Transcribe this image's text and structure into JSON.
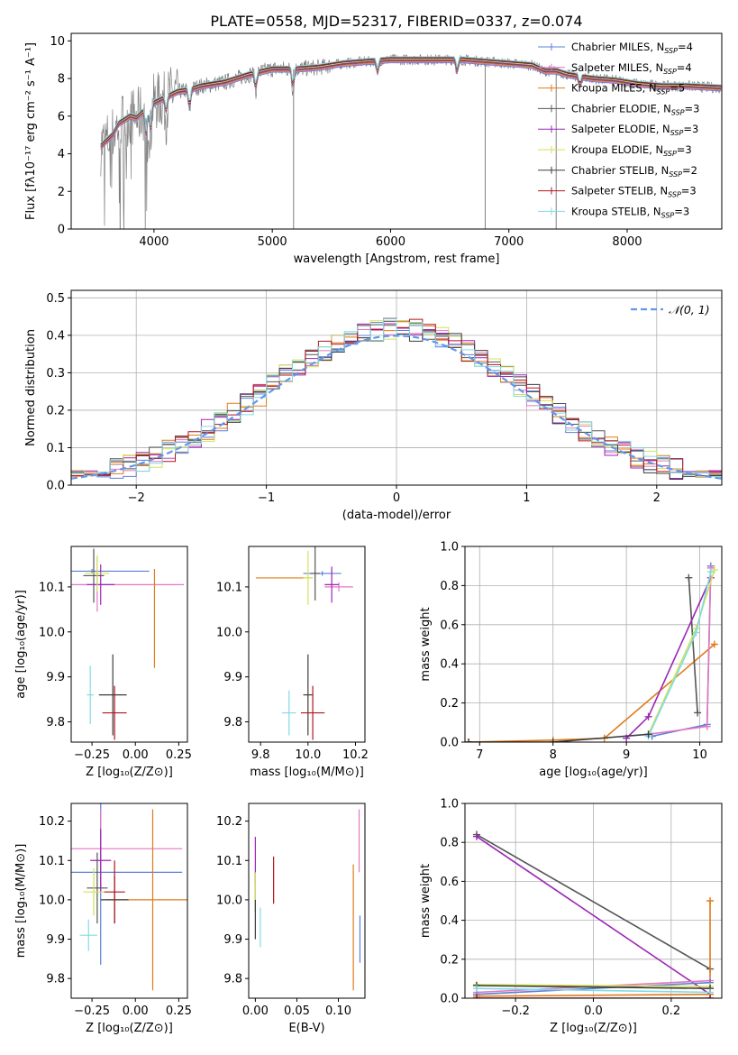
{
  "figure_title": "PLATE=0558, MJD=52317, FIBERID=0337, z=0.074",
  "colors": {
    "chabrier_miles": "#5b7fd6",
    "salpeter_miles": "#e377c2",
    "kroupa_miles": "#e07b1a",
    "chabrier_elodie": "#555555",
    "salpeter_elodie": "#9b26b6",
    "kroupa_elodie": "#d4e157",
    "chabrier_stelib": "#3d3d3d",
    "salpeter_stelib": "#b3141f",
    "kroupa_stelib": "#80dbe5",
    "data": "#808080",
    "normal": "#6495ed"
  },
  "legend_models": [
    {
      "key": "chabrier_miles",
      "label": "Chabrier MILES, N",
      "sub": "SSP",
      "eq": "=4"
    },
    {
      "key": "salpeter_miles",
      "label": "Salpeter MILES, N",
      "sub": "SSP",
      "eq": "=4"
    },
    {
      "key": "kroupa_miles",
      "label": "Kroupa MILES, N",
      "sub": "SSP",
      "eq": "=5"
    },
    {
      "key": "chabrier_elodie",
      "label": "Chabrier ELODIE, N",
      "sub": "SSP",
      "eq": "=3"
    },
    {
      "key": "salpeter_elodie",
      "label": "Salpeter ELODIE, N",
      "sub": "SSP",
      "eq": "=3"
    },
    {
      "key": "kroupa_elodie",
      "label": "Kroupa ELODIE, N",
      "sub": "SSP",
      "eq": "=3"
    },
    {
      "key": "chabrier_stelib",
      "label": "Chabrier STELIB, N",
      "sub": "SSP",
      "eq": "=2"
    },
    {
      "key": "salpeter_stelib",
      "label": "Salpeter STELIB, N",
      "sub": "SSP",
      "eq": "=3"
    },
    {
      "key": "kroupa_stelib",
      "label": "Kroupa STELIB, N",
      "sub": "SSP",
      "eq": "=3"
    }
  ],
  "chart_data": [
    {
      "id": "spectrum",
      "type": "line",
      "xlabel": "wavelength [Angstrom, rest frame]",
      "ylabel": "Flux [fλ10⁻¹⁷ erg cm⁻² s⁻¹ A⁻¹]",
      "xlim": [
        3300,
        8800
      ],
      "ylim": [
        0,
        10.4
      ],
      "xticks": [
        4000,
        5000,
        6000,
        7000,
        8000
      ],
      "yticks": [
        0,
        2,
        4,
        6,
        8,
        10
      ],
      "grid": false,
      "legend_position": "upper right",
      "continuum": {
        "x": [
          3550,
          3650,
          3700,
          3800,
          3850,
          3900,
          3950,
          4000,
          4100,
          4200,
          4300,
          4400,
          4500,
          4600,
          4800,
          5000,
          5200,
          5400,
          5600,
          5800,
          6000,
          6200,
          6400,
          6600,
          6800,
          7000,
          7200,
          7300,
          7400,
          7500,
          7700,
          7900,
          8100,
          8300,
          8500,
          8800
        ],
        "y": [
          4.4,
          5.0,
          5.6,
          6.0,
          5.9,
          6.2,
          6.4,
          6.7,
          7.0,
          7.3,
          7.4,
          7.6,
          7.7,
          7.8,
          8.2,
          8.5,
          8.5,
          8.6,
          8.8,
          8.9,
          9.0,
          9.0,
          9.0,
          9.0,
          8.9,
          8.8,
          8.7,
          8.4,
          8.4,
          8.2,
          8.0,
          7.9,
          7.7,
          7.6,
          7.6,
          7.5
        ]
      }
    },
    {
      "id": "residuals",
      "type": "histogram",
      "xlabel": "(data-model)/error",
      "ylabel": "Normed distribution",
      "xlim": [
        -2.5,
        2.5
      ],
      "ylim": [
        0,
        0.52
      ],
      "xticks": [
        -2,
        -1,
        0,
        1,
        2
      ],
      "yticks": [
        0.0,
        0.1,
        0.2,
        0.3,
        0.4,
        0.5
      ],
      "grid": true,
      "legend_position": "upper right",
      "legend_label": "𝒩(0, 1)",
      "bin_width": 0.1,
      "bin_start": -2.5
    },
    {
      "id": "age_vs_z",
      "type": "scatter",
      "xlabel": "Z [log₁₀(Z/Z⊙)]",
      "ylabel": "age  [log₁₀(age/yr)]",
      "xlim": [
        -0.37,
        0.3
      ],
      "ylim": [
        9.755,
        10.19
      ],
      "xticks": [
        -0.25,
        0.0,
        0.25
      ],
      "yticks": [
        9.8,
        9.9,
        10.0,
        10.1
      ],
      "points": [
        {
          "key": "chabrier_miles",
          "x": -0.25,
          "y": 10.135,
          "xerr": 0.33,
          "yerr": 0.005
        },
        {
          "key": "salpeter_miles",
          "x": -0.22,
          "y": 10.105,
          "xerr": 0.5,
          "yerr": 0.06
        },
        {
          "key": "kroupa_miles",
          "x": 0.11,
          "y": 10.03,
          "xerr": 0.001,
          "yerr": 0.11
        },
        {
          "key": "chabrier_elodie",
          "x": -0.24,
          "y": 10.125,
          "xerr": 0.06,
          "yerr": 0.06
        },
        {
          "key": "salpeter_elodie",
          "x": -0.2,
          "y": 10.105,
          "xerr": 0.08,
          "yerr": 0.045
        },
        {
          "key": "kroupa_elodie",
          "x": -0.22,
          "y": 10.13,
          "xerr": 0.07,
          "yerr": 0.04
        },
        {
          "key": "chabrier_stelib",
          "x": -0.13,
          "y": 9.86,
          "xerr": 0.08,
          "yerr": 0.09
        },
        {
          "key": "salpeter_stelib",
          "x": -0.12,
          "y": 9.82,
          "xerr": 0.07,
          "yerr": 0.06
        },
        {
          "key": "kroupa_stelib",
          "x": -0.26,
          "y": 9.86,
          "xerr": 0.02,
          "yerr": 0.065
        }
      ]
    },
    {
      "id": "age_vs_mass",
      "type": "scatter",
      "xlabel": "mass [log₁₀(M/M⊙)]",
      "ylabel": "",
      "xlim": [
        9.75,
        10.24
      ],
      "ylim": [
        9.755,
        10.19
      ],
      "xticks": [
        9.8,
        10.0,
        10.2
      ],
      "yticks": [
        9.8,
        9.9,
        10.0,
        10.1
      ],
      "points": [
        {
          "key": "chabrier_miles",
          "x": 10.06,
          "y": 10.13,
          "xerr": 0.08,
          "yerr": 0.005
        },
        {
          "key": "salpeter_miles",
          "x": 10.13,
          "y": 10.1,
          "xerr": 0.06,
          "yerr": 0.01
        },
        {
          "key": "kroupa_miles",
          "x": 9.9,
          "y": 10.12,
          "xerr": 0.12,
          "yerr": 0.001
        },
        {
          "key": "chabrier_elodie",
          "x": 10.03,
          "y": 10.13,
          "xerr": 0.02,
          "yerr": 0.06
        },
        {
          "key": "salpeter_elodie",
          "x": 10.1,
          "y": 10.105,
          "xerr": 0.03,
          "yerr": 0.04
        },
        {
          "key": "kroupa_elodie",
          "x": 10.0,
          "y": 10.12,
          "xerr": 0.02,
          "yerr": 0.06
        },
        {
          "key": "chabrier_stelib",
          "x": 10.0,
          "y": 9.86,
          "xerr": 0.02,
          "yerr": 0.09
        },
        {
          "key": "salpeter_stelib",
          "x": 10.02,
          "y": 9.82,
          "xerr": 0.05,
          "yerr": 0.06
        },
        {
          "key": "kroupa_stelib",
          "x": 9.92,
          "y": 9.82,
          "xerr": 0.03,
          "yerr": 0.05
        }
      ]
    },
    {
      "id": "weight_vs_age",
      "type": "line",
      "xlabel": "age  [log₁₀(age/yr)]",
      "ylabel": "mass weight",
      "xlim": [
        6.8,
        10.3
      ],
      "ylim": [
        0,
        1.0
      ],
      "xticks": [
        7,
        8,
        9,
        10
      ],
      "yticks": [
        0.0,
        0.2,
        0.4,
        0.6,
        0.8,
        1.0
      ],
      "grid": true,
      "series": [
        {
          "key": "kroupa_miles",
          "x": [
            6.85,
            8.0,
            8.7,
            10.2
          ],
          "y": [
            0.0,
            0.01,
            0.02,
            0.5
          ]
        },
        {
          "key": "chabrier_elodie",
          "x": [
            9.85,
            9.97
          ],
          "y": [
            0.84,
            0.15
          ]
        },
        {
          "key": "salpeter_elodie",
          "x": [
            9.0,
            9.3,
            10.15
          ],
          "y": [
            0.02,
            0.13,
            0.84
          ]
        },
        {
          "key": "chabrier_miles",
          "x": [
            9.35,
            10.1,
            10.15
          ],
          "y": [
            0.03,
            0.09,
            0.9
          ]
        },
        {
          "key": "salpeter_miles",
          "x": [
            9.3,
            10.1,
            10.15
          ],
          "y": [
            0.04,
            0.08,
            0.89
          ]
        },
        {
          "key": "kroupa_elodie",
          "x": [
            9.3,
            9.95,
            10.2
          ],
          "y": [
            0.04,
            0.58,
            0.88
          ]
        },
        {
          "key": "kroupa_stelib",
          "x": [
            9.3,
            9.95,
            10.15
          ],
          "y": [
            0.03,
            0.56,
            0.87
          ]
        },
        {
          "key": "chabrier_stelib",
          "x": [
            6.85,
            8.0,
            9.3
          ],
          "y": [
            0.0,
            0.0,
            0.04
          ]
        }
      ]
    },
    {
      "id": "mass_vs_z",
      "type": "scatter",
      "xlabel": "Z [log₁₀(Z/Z⊙)]",
      "ylabel": "mass [log₁₀(M/M⊙)]",
      "xlim": [
        -0.37,
        0.3
      ],
      "ylim": [
        9.75,
        10.245
      ],
      "xticks": [
        -0.25,
        0.0,
        0.25
      ],
      "yticks": [
        9.8,
        9.9,
        10.0,
        10.1,
        10.2
      ],
      "points": [
        {
          "key": "chabrier_miles",
          "x": -0.2,
          "y": 10.07,
          "xerr": 0.47,
          "yerr": 0.235
        },
        {
          "key": "salpeter_miles",
          "x": -0.2,
          "y": 10.13,
          "xerr": 0.47,
          "yerr": 0.1
        },
        {
          "key": "kroupa_miles",
          "x": 0.1,
          "y": 10.0,
          "xerr": 0.27,
          "yerr": 0.23
        },
        {
          "key": "chabrier_elodie",
          "x": -0.22,
          "y": 10.03,
          "xerr": 0.06,
          "yerr": 0.09
        },
        {
          "key": "salpeter_elodie",
          "x": -0.2,
          "y": 10.1,
          "xerr": 0.06,
          "yerr": 0.08
        },
        {
          "key": "kroupa_elodie",
          "x": -0.24,
          "y": 10.02,
          "xerr": 0.06,
          "yerr": 0.06
        },
        {
          "key": "chabrier_stelib",
          "x": -0.12,
          "y": 10.0,
          "xerr": 0.08,
          "yerr": 0.06
        },
        {
          "key": "salpeter_stelib",
          "x": -0.12,
          "y": 10.02,
          "xerr": 0.06,
          "yerr": 0.08
        },
        {
          "key": "kroupa_stelib",
          "x": -0.27,
          "y": 9.91,
          "xerr": 0.05,
          "yerr": 0.04
        }
      ]
    },
    {
      "id": "mass_vs_ebv",
      "type": "scatter",
      "xlabel": "E(B-V)",
      "ylabel": "",
      "xlim": [
        -0.008,
        0.132
      ],
      "ylim": [
        9.75,
        10.245
      ],
      "xticks": [
        0.0,
        0.05,
        0.1
      ],
      "yticks": [
        9.8,
        9.9,
        10.0,
        10.1,
        10.2
      ],
      "points": [
        {
          "key": "chabrier_miles",
          "x": 0.126,
          "y": 9.9,
          "xerr": 0.0,
          "yerr": 0.06
        },
        {
          "key": "salpeter_miles",
          "x": 0.125,
          "y": 10.15,
          "xerr": 0.0,
          "yerr": 0.08
        },
        {
          "key": "kroupa_miles",
          "x": 0.118,
          "y": 9.93,
          "xerr": 0.0,
          "yerr": 0.16
        },
        {
          "key": "chabrier_elodie",
          "x": 0.0,
          "y": 10.02,
          "xerr": 0.0,
          "yerr": 0.05
        },
        {
          "key": "salpeter_elodie",
          "x": 0.0,
          "y": 10.1,
          "xerr": 0.0,
          "yerr": 0.06
        },
        {
          "key": "kroupa_elodie",
          "x": 0.0,
          "y": 10.02,
          "xerr": 0.0,
          "yerr": 0.05
        },
        {
          "key": "chabrier_stelib",
          "x": 0.0,
          "y": 9.95,
          "xerr": 0.0,
          "yerr": 0.05
        },
        {
          "key": "salpeter_stelib",
          "x": 0.022,
          "y": 10.05,
          "xerr": 0.0,
          "yerr": 0.06
        },
        {
          "key": "kroupa_stelib",
          "x": 0.006,
          "y": 9.93,
          "xerr": 0.0,
          "yerr": 0.05
        }
      ]
    },
    {
      "id": "weight_vs_z",
      "type": "line",
      "xlabel": "Z [log₁₀(Z/Z⊙)]",
      "ylabel": "mass weight",
      "xlim": [
        -0.33,
        0.33
      ],
      "ylim": [
        0,
        1.0
      ],
      "xticks": [
        -0.2,
        0.0,
        0.2
      ],
      "yticks": [
        0.0,
        0.2,
        0.4,
        0.6,
        0.8,
        1.0
      ],
      "grid": true,
      "series": [
        {
          "key": "chabrier_elodie",
          "x": [
            -0.3,
            0.3
          ],
          "y": [
            0.84,
            0.15
          ]
        },
        {
          "key": "salpeter_elodie",
          "x": [
            -0.3,
            0.3
          ],
          "y": [
            0.83,
            0.02
          ]
        },
        {
          "key": "kroupa_miles",
          "x": [
            -0.3,
            0.3,
            0.3
          ],
          "y": [
            0.01,
            0.02,
            0.5
          ]
        },
        {
          "key": "salpeter_miles",
          "x": [
            -0.3,
            0.3
          ],
          "y": [
            0.03,
            0.09
          ]
        },
        {
          "key": "chabrier_miles",
          "x": [
            -0.3,
            0.3
          ],
          "y": [
            0.02,
            0.08
          ]
        },
        {
          "key": "kroupa_elodie",
          "x": [
            -0.3,
            0.3
          ],
          "y": [
            0.07,
            0.06
          ]
        },
        {
          "key": "chabrier_stelib",
          "x": [
            -0.3,
            0.3
          ],
          "y": [
            0.065,
            0.05
          ]
        },
        {
          "key": "kroupa_stelib",
          "x": [
            -0.3,
            0.3
          ],
          "y": [
            0.05,
            0.03
          ]
        },
        {
          "key": "salpeter_stelib",
          "x": [
            -0.3,
            0.3
          ],
          "y": [
            0.0,
            0.0
          ]
        }
      ]
    }
  ]
}
